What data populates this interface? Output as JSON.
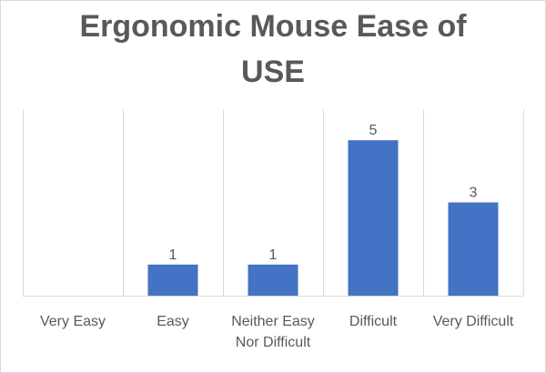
{
  "chart_data": {
    "type": "bar",
    "title": "Ergonomic Mouse Ease of USE",
    "title_lines": [
      "Ergonomic Mouse Ease of",
      "USE"
    ],
    "categories": [
      "Very Easy",
      "Easy",
      "Neither Easy Nor Difficult",
      "Difficult",
      "Very Difficult"
    ],
    "category_label_lines": [
      [
        "Very Easy"
      ],
      [
        "Easy"
      ],
      [
        "Neither Easy",
        "Nor Difficult"
      ],
      [
        "Difficult"
      ],
      [
        "Very Difficult"
      ]
    ],
    "values": [
      0,
      1,
      1,
      5,
      3
    ],
    "data_labels": [
      "",
      "1",
      "1",
      "5",
      "3"
    ],
    "ylim": [
      0,
      6
    ],
    "bar_color": "#4472C4",
    "grid": "vertical category separators",
    "legend": "none",
    "xlabel": "",
    "ylabel": ""
  }
}
